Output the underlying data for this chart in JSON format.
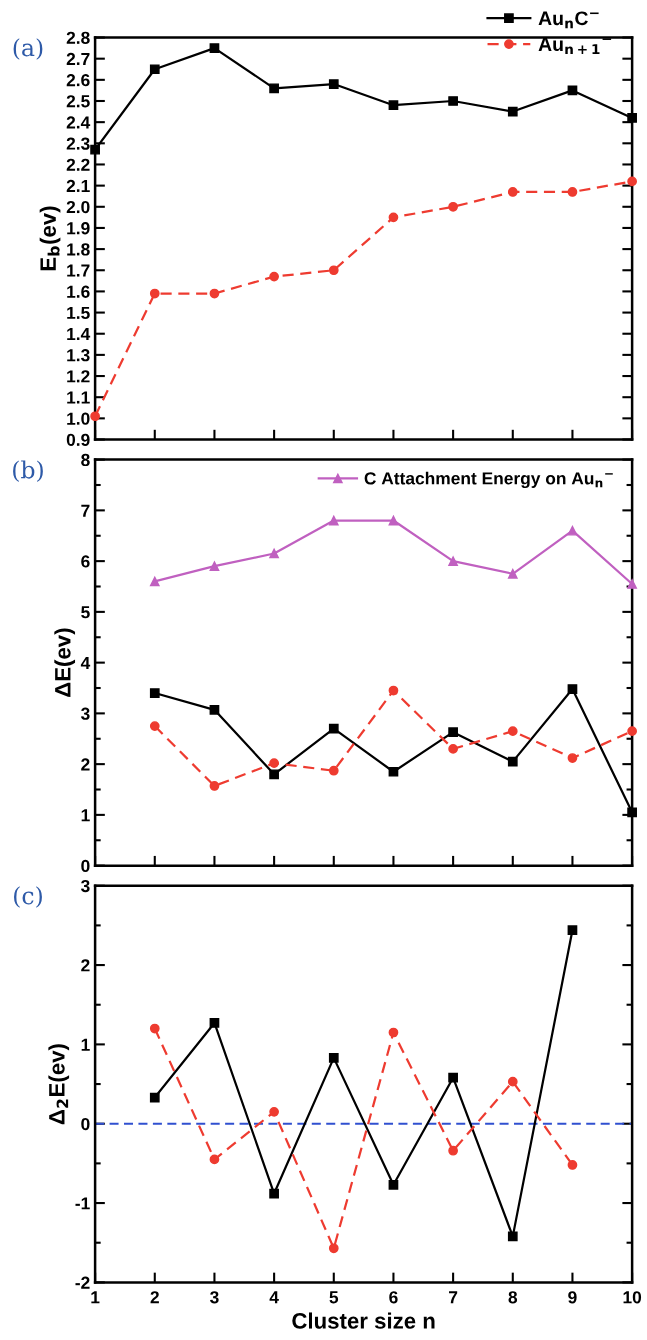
{
  "chart_data": [
    {
      "type": "line",
      "annotations": [
        "(a)"
      ],
      "ylabel": "E$_{b}$(ev)",
      "x": [
        1,
        2,
        3,
        4,
        5,
        6,
        7,
        8,
        9,
        10
      ],
      "xlim": [
        1,
        10
      ],
      "xticks": [
        1,
        2,
        3,
        4,
        5,
        6,
        7,
        8,
        9,
        10
      ],
      "ylim": [
        0.9,
        2.8
      ],
      "yticks": [
        {
          "value": 0.9,
          "label": "0.9"
        },
        {
          "value": 1.0,
          "label": "1.0"
        },
        {
          "value": 1.1,
          "label": "1.1"
        },
        {
          "value": 1.2,
          "label": "1.2"
        },
        {
          "value": 1.3,
          "label": "1.3"
        },
        {
          "value": 1.4,
          "label": "1.4"
        },
        {
          "value": 1.5,
          "label": "1.5"
        },
        {
          "value": 1.6,
          "label": "1.6"
        },
        {
          "value": 1.7,
          "label": "1.7"
        },
        {
          "value": 1.8,
          "label": "1.8"
        },
        {
          "value": 1.9,
          "label": "1.9"
        },
        {
          "value": 2.0,
          "label": "2.0"
        },
        {
          "value": 2.1,
          "label": "2.1"
        },
        {
          "value": 2.2,
          "label": "2.2"
        },
        {
          "value": 2.3,
          "label": "2.3"
        },
        {
          "value": 2.4,
          "label": "2.4"
        },
        {
          "value": 2.5,
          "label": "2.5"
        },
        {
          "value": 2.6,
          "label": "2.6"
        },
        {
          "value": 2.7,
          "label": "2.7"
        },
        {
          "value": 2.8,
          "label": "2.8"
        }
      ],
      "tick_labels": "y",
      "legend": "top right",
      "grid": false,
      "series": [
        {
          "name": "Au$_{n}$C$^{−}$",
          "color": "#000000",
          "marker": "square",
          "line_style": "solid",
          "values": [
            2.27,
            2.65,
            2.75,
            2.56,
            2.58,
            2.48,
            2.5,
            2.45,
            2.55,
            2.42
          ]
        },
        {
          "name": "Au$_{n+1}$$^{−}$",
          "color": "#ee3b30",
          "marker": "circle",
          "line_style": "dashed",
          "values": [
            1.01,
            1.59,
            1.59,
            1.67,
            1.7,
            1.95,
            2.0,
            2.07,
            2.07,
            2.12
          ]
        }
      ]
    },
    {
      "type": "line",
      "annotations": [
        "(b)"
      ],
      "ylabel": "ΔE(ev)",
      "x": [
        2,
        3,
        4,
        5,
        6,
        7,
        8,
        9,
        10
      ],
      "xlim": [
        1,
        10
      ],
      "xticks": [
        1,
        2,
        3,
        4,
        5,
        6,
        7,
        8,
        9,
        10
      ],
      "ylim": [
        0,
        8
      ],
      "yticks": [
        0,
        1,
        2,
        3,
        4,
        5,
        6,
        7,
        8
      ],
      "tick_labels": "y",
      "legend": "top right",
      "grid": false,
      "series": [
        {
          "name": "C Attachment Energy on Au$_{n}$$^{−}$",
          "color": "#c060c0",
          "marker": "triangle",
          "line_style": "solid",
          "values": [
            5.6,
            5.9,
            6.15,
            6.8,
            6.8,
            6.0,
            5.75,
            6.6,
            5.55
          ]
        },
        {
          "color": "#000000",
          "marker": "square",
          "line_style": "solid",
          "values": [
            3.4,
            3.07,
            1.8,
            2.7,
            1.85,
            2.63,
            2.05,
            3.48,
            1.05
          ]
        },
        {
          "color": "#ee3b30",
          "marker": "circle",
          "line_style": "dashed",
          "values": [
            2.75,
            1.57,
            2.02,
            1.87,
            3.45,
            2.3,
            2.65,
            2.12,
            2.65
          ]
        }
      ]
    },
    {
      "type": "line",
      "annotations": [
        "(c)"
      ],
      "ylabel": "Δ$_{2}$E(ev)",
      "xlabel": "Cluster size n",
      "x": [
        2,
        3,
        4,
        5,
        6,
        7,
        8,
        9
      ],
      "xlim": [
        1,
        10
      ],
      "xticks": [
        1,
        2,
        3,
        4,
        5,
        6,
        7,
        8,
        9,
        10
      ],
      "ylim": [
        -2,
        3
      ],
      "yticks": [
        -2,
        -1,
        0,
        1,
        2,
        3
      ],
      "grid": false,
      "ref_lines": [
        {
          "axis": "y",
          "value": 0,
          "color": "#3050d0",
          "line_style": "dashed"
        }
      ],
      "series": [
        {
          "color": "#000000",
          "marker": "square",
          "line_style": "solid",
          "values": [
            0.33,
            1.27,
            -0.88,
            0.83,
            -0.77,
            0.58,
            -1.42,
            2.44
          ]
        },
        {
          "color": "#ee3b30",
          "marker": "circle",
          "line_style": "dashed",
          "values": [
            1.2,
            -0.45,
            0.15,
            -1.57,
            1.15,
            -0.34,
            0.53,
            -0.52
          ]
        }
      ]
    }
  ]
}
